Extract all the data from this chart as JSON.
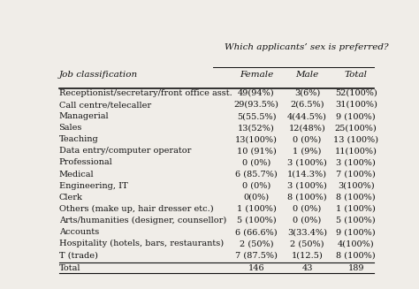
{
  "header_main": "Which applicants’ sex is preferred?",
  "col0_header": "Job classification",
  "col_headers": [
    "Female",
    "Male",
    "Total"
  ],
  "rows": [
    [
      "Receptionist/secretary/front office asst.",
      "49(94%)",
      "3(6%)",
      "52(100%)"
    ],
    [
      "Call centre/telecaller",
      "29(93.5%)",
      "2(6.5%)",
      "31(100%)"
    ],
    [
      "Managerial",
      "5(55.5%)",
      "4(44.5%)",
      "9 (100%)"
    ],
    [
      "Sales",
      "13(52%)",
      "12(48%)",
      "25(100%)"
    ],
    [
      "Teaching",
      "13(100%)",
      "0 (0%)",
      "13 (100%)"
    ],
    [
      "Data entry/computer operator",
      "10 (91%)",
      "1 (9%)",
      "11(100%)"
    ],
    [
      "Professional",
      "0 (0%)",
      "3 (100%)",
      "3 (100%)"
    ],
    [
      "Medical",
      "6 (85.7%)",
      "1(14.3%)",
      "7 (100%)"
    ],
    [
      "Engineering, IT",
      "0 (0%)",
      "3 (100%)",
      "3(100%)"
    ],
    [
      "Clerk",
      "0(0%)",
      "8 (100%)",
      "8 (100%)"
    ],
    [
      "Others (make up, hair dresser etc.)",
      "1 (100%)",
      "0 (0%)",
      "1 (100%)"
    ],
    [
      "Arts/humanities (designer, counsellor)",
      "5 (100%)",
      "0 (0%)",
      "5 (100%)"
    ],
    [
      "Accounts",
      "6 (66.6%)",
      "3(33.4%)",
      "9 (100%)"
    ],
    [
      "Hospitality (hotels, bars, restaurants)",
      "2 (50%)",
      "2 (50%)",
      "4(100%)"
    ],
    [
      "T (trade)",
      "7 (87.5%)",
      "1(12.5)",
      "8 (100%)"
    ]
  ],
  "total_row": [
    "Total",
    "146",
    "43",
    "189"
  ],
  "bg_color": "#f0ede8",
  "text_color": "#111111",
  "font_size": 7.0,
  "header_font_size": 7.5
}
